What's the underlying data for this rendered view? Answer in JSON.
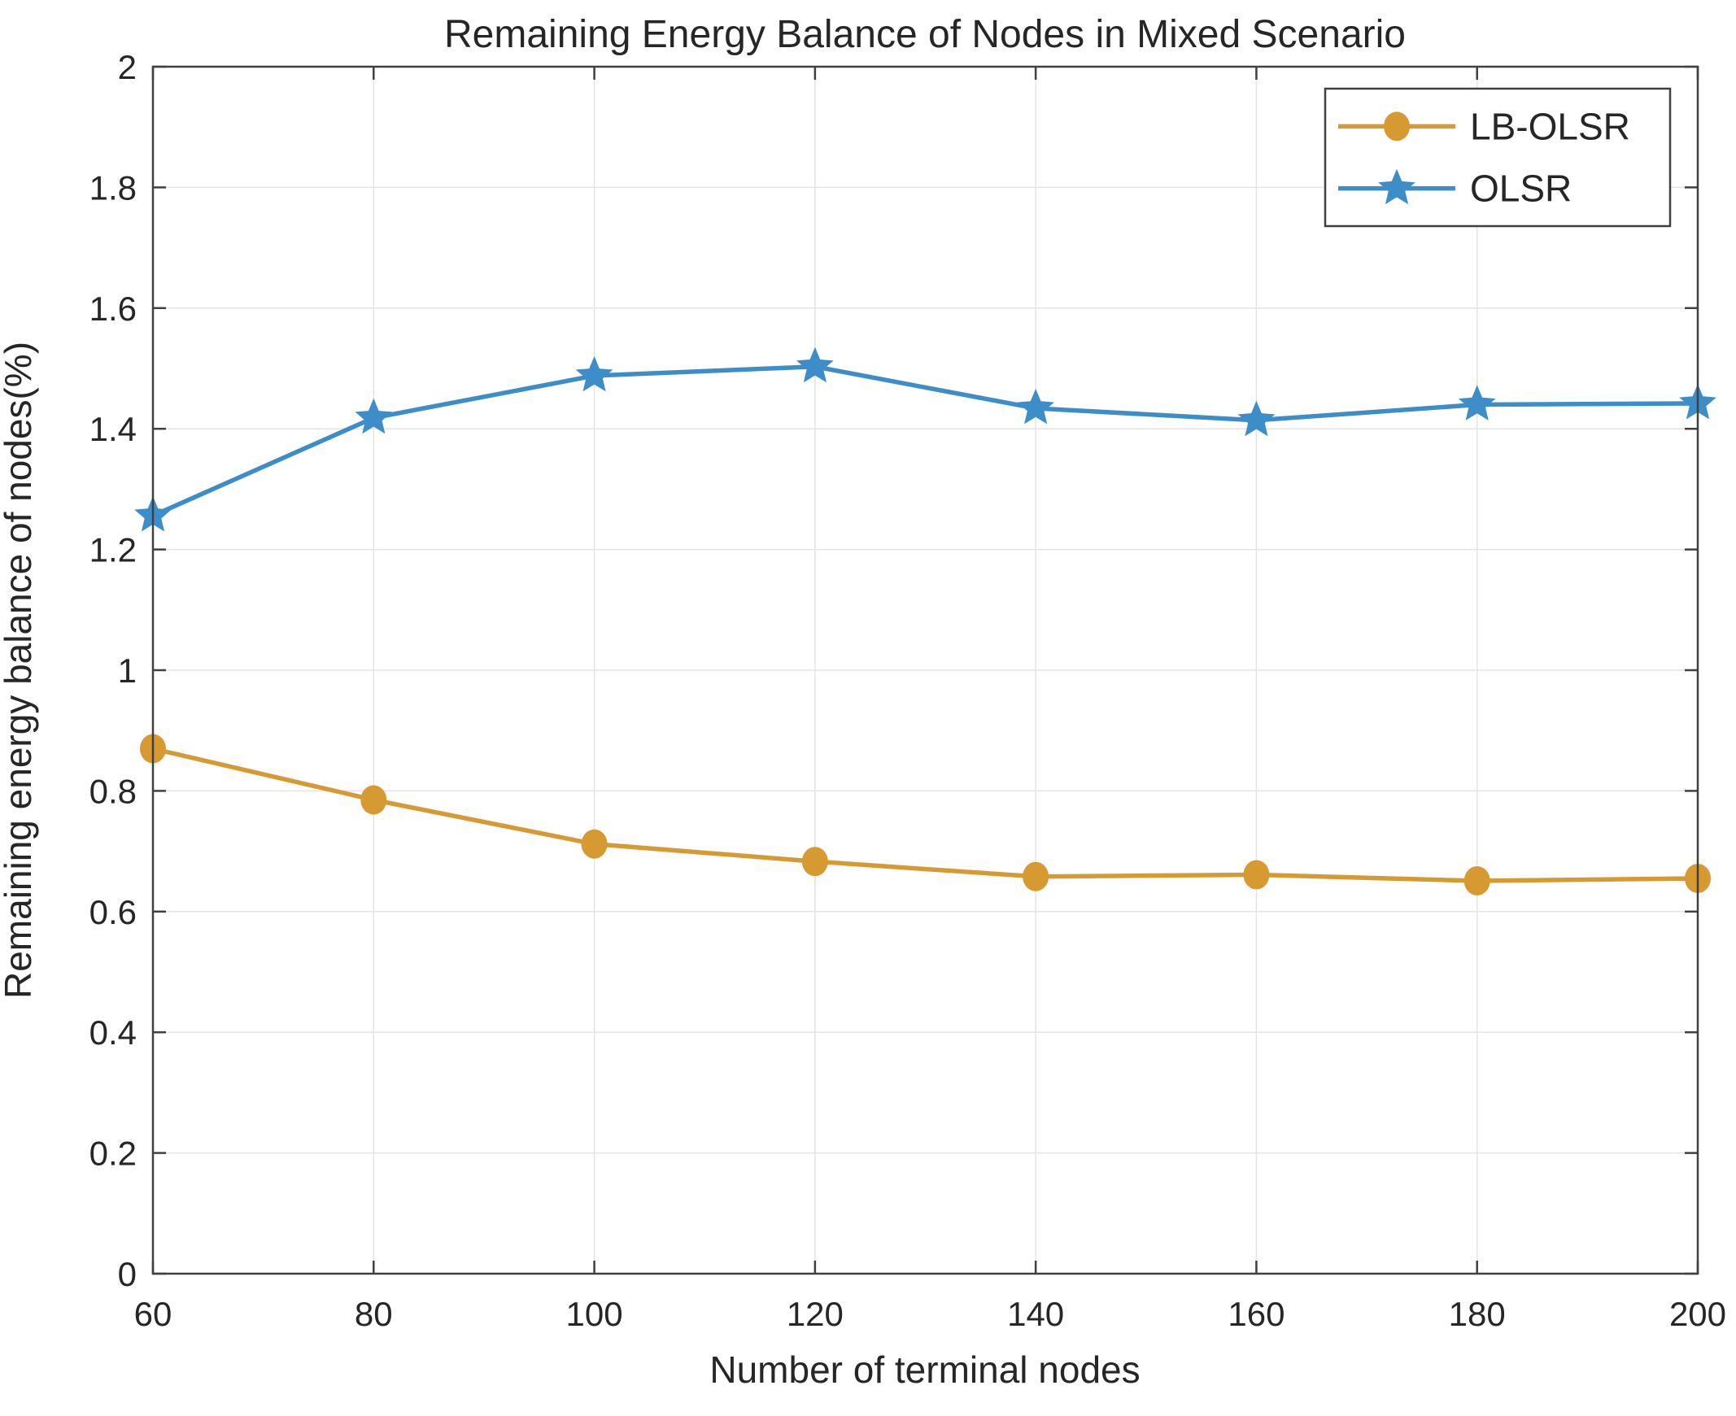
{
  "chart_data": {
    "type": "line",
    "title": "Remaining Energy Balance of Nodes in Mixed Scenario",
    "xlabel": "Number of terminal nodes",
    "ylabel": "Remaining energy balance of nodes(%)",
    "xlim": [
      60,
      200
    ],
    "ylim": [
      0,
      2
    ],
    "grid": true,
    "x": [
      60,
      80,
      100,
      120,
      140,
      160,
      180,
      200
    ],
    "x_ticks": [
      60,
      80,
      100,
      120,
      140,
      160,
      180,
      200
    ],
    "x_tick_labels": [
      "60",
      "80",
      "100",
      "120",
      "140",
      "160",
      "180",
      "200"
    ],
    "y_ticks": [
      0,
      0.2,
      0.4,
      0.6,
      0.8,
      1,
      1.2,
      1.4,
      1.6,
      1.8,
      2
    ],
    "y_tick_labels": [
      "0",
      "0.2",
      "0.4",
      "0.6",
      "0.8",
      "1",
      "1.2",
      "1.4",
      "1.6",
      "1.8",
      "2"
    ],
    "series": [
      {
        "name": "LB-OLSR",
        "marker": "circle",
        "color": "#D79A33",
        "values": [
          0.87,
          0.785,
          0.712,
          0.683,
          0.658,
          0.661,
          0.651,
          0.655
        ]
      },
      {
        "name": "OLSR",
        "marker": "star",
        "color": "#3C8DC8",
        "values": [
          1.256,
          1.418,
          1.488,
          1.503,
          1.434,
          1.414,
          1.44,
          1.442
        ]
      }
    ],
    "legend": {
      "position": "top-right",
      "entries": [
        "LB-OLSR",
        "OLSR"
      ]
    },
    "colors": {
      "axis": "#404040",
      "grid": "#E4E4E4",
      "text": "#262626",
      "background": "#FFFFFF"
    }
  }
}
